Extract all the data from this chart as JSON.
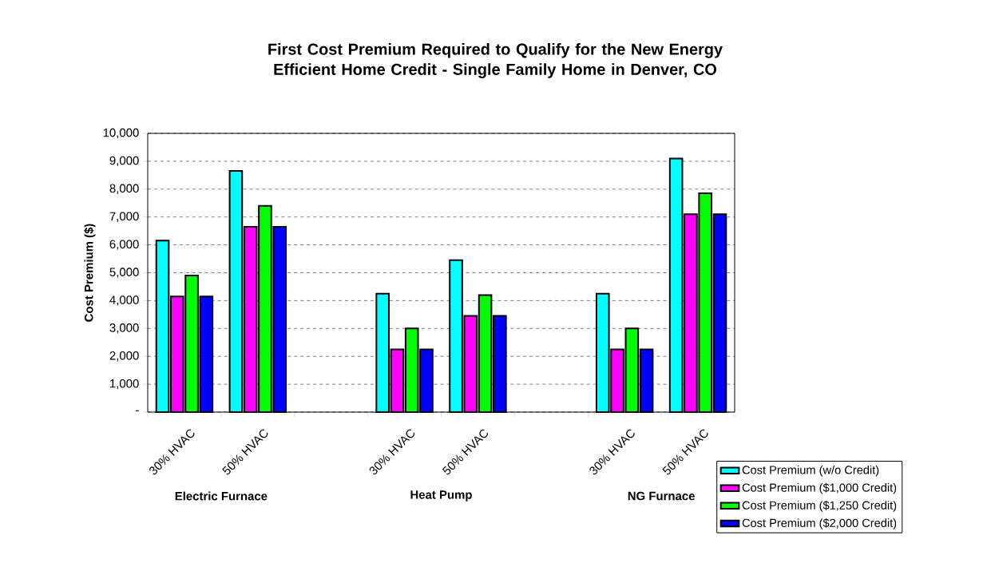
{
  "chart_data": {
    "type": "bar",
    "title": "First Cost Premium Required to Qualify for the New Energy Efficient Home Credit - Single Family Home in Denver, CO",
    "ylabel": "Cost Premium ($)",
    "categories": [
      "30% HVAC",
      "50% HVAC",
      null,
      "30% HVAC",
      "50% HVAC",
      null,
      "30% HVAC",
      "50% HVAC"
    ],
    "series": [
      {
        "name": "Cost Premium (w/o Credit)",
        "color": "#00ffff",
        "values": [
          6150,
          8650,
          null,
          4250,
          5450,
          null,
          4250,
          9100
        ]
      },
      {
        "name": "Cost Premium ($1,000 Credit)",
        "color": "#ff00ff",
        "values": [
          4150,
          6650,
          null,
          2250,
          3450,
          null,
          2250,
          7100
        ]
      },
      {
        "name": "Cost Premium ($1,250 Credit)",
        "color": "#00ff00",
        "values": [
          4900,
          7400,
          null,
          3000,
          4200,
          null,
          3000,
          7850
        ]
      },
      {
        "name": "Cost Premium ($2,000 Credit)",
        "color": "#0000ff",
        "values": [
          4150,
          6650,
          null,
          2250,
          3450,
          null,
          2250,
          7100
        ]
      }
    ],
    "annotations": [
      "Electric Furnace",
      "Heat Pump",
      "NG Furnace"
    ],
    "ylim": [
      0,
      10000
    ],
    "yticks": [
      {
        "value": 0,
        "label": "-"
      },
      {
        "value": 1000,
        "label": "1,000"
      },
      {
        "value": 2000,
        "label": "2,000"
      },
      {
        "value": 3000,
        "label": "3,000"
      },
      {
        "value": 4000,
        "label": "4,000"
      },
      {
        "value": 5000,
        "label": "5,000"
      },
      {
        "value": 6000,
        "label": "6,000"
      },
      {
        "value": 7000,
        "label": "7,000"
      },
      {
        "value": 8000,
        "label": "8,000"
      },
      {
        "value": 9000,
        "label": "9,000"
      },
      {
        "value": 10000,
        "label": "10,000"
      }
    ],
    "grid": "y",
    "legend": "bottom right"
  }
}
